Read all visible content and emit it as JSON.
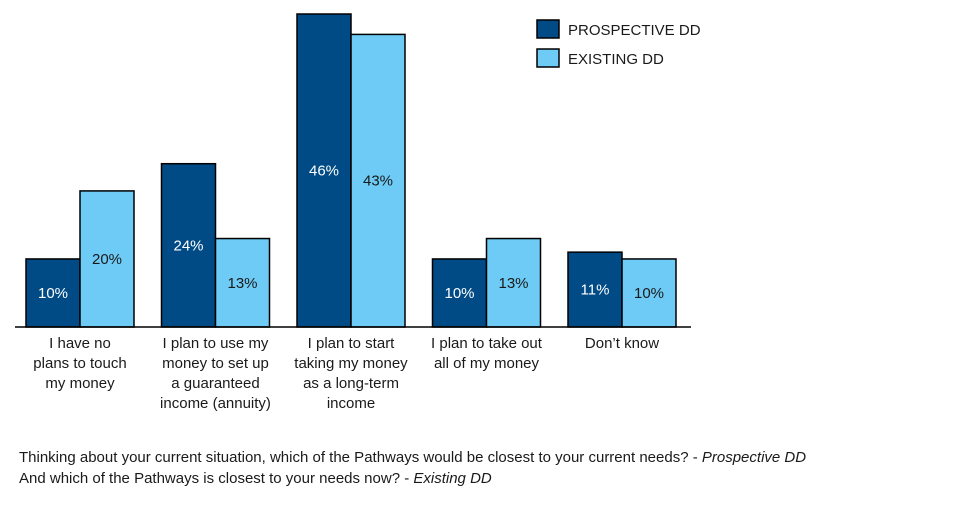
{
  "chart_data": {
    "type": "bar",
    "categories": [
      [
        "I have no",
        "plans to touch",
        "my money"
      ],
      [
        "I plan to use my",
        "money to set up",
        "a guaranteed",
        "income (annuity)"
      ],
      [
        "I plan to start",
        "taking my money",
        "as a long-term",
        "income"
      ],
      [
        "I plan to take out",
        "all of my money"
      ],
      [
        "Don’t know"
      ]
    ],
    "series": [
      {
        "name": "PROSPECTIVE DD",
        "color": "#004b85",
        "values": [
          10,
          24,
          46,
          10,
          11
        ],
        "labels": [
          "10%",
          "24%",
          "46%",
          "10%",
          "11%"
        ]
      },
      {
        "name": "EXISTING DD",
        "color": "#6dcbf5",
        "values": [
          20,
          13,
          43,
          13,
          10
        ],
        "labels": [
          "20%",
          "13%",
          "43%",
          "13%",
          "10%"
        ]
      }
    ],
    "ylim": [
      0,
      46
    ],
    "grid": false,
    "legend_position": "top-right"
  },
  "footnotes": [
    {
      "text": "Thinking about your current situation, which of the Pathways would be closest to your current needs? - ",
      "tag": "Prospective DD"
    },
    {
      "text": "And which of the Pathways is closest to your needs now? - ",
      "tag": "Existing DD"
    }
  ]
}
